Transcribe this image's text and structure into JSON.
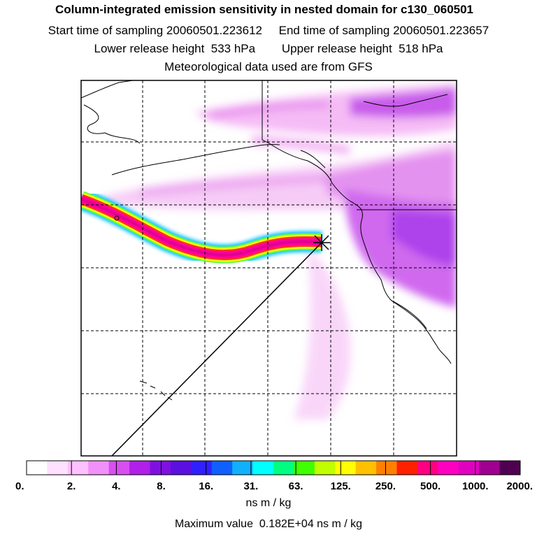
{
  "header": {
    "title": "Column-integrated emission sensitivity in nested domain for c130_060501",
    "sampling": "Start time of sampling 20060501.223612     End time of sampling 20060501.223657",
    "release": "Lower release height  533 hPa        Upper release height  518 hPa",
    "met": "Meteorological data used are from GFS"
  },
  "chart_data": {
    "type": "heatmap",
    "title": "Column-integrated emission sensitivity in nested domain for c130_060501",
    "colorbar": {
      "ticks": [
        "0.",
        "2.",
        "4.",
        "8.",
        "16.",
        "31.",
        "63.",
        "125.",
        "250.",
        "500.",
        "1000.",
        "2000."
      ],
      "unit": "ns m / kg",
      "colors": [
        "#ffffff",
        "#ffe0ff",
        "#ffc0ff",
        "#f090f8",
        "#d84ff0",
        "#b020e8",
        "#8010e0",
        "#5a10e0",
        "#3020ff",
        "#1060ff",
        "#10b0ff",
        "#00ffff",
        "#00ff80",
        "#40ff00",
        "#c0ff00",
        "#ffff00",
        "#ffc000",
        "#ff8000",
        "#ff2000",
        "#ff0080",
        "#ff00c0",
        "#e000c0",
        "#a00090",
        "#500050"
      ]
    },
    "release_marker": "X",
    "grid": "dashed",
    "max_value": "Maximum value  0.182E+04 ns m / kg"
  },
  "footer": {
    "unit": "ns m / kg",
    "max": "Maximum value  0.182E+04 ns m / kg"
  }
}
